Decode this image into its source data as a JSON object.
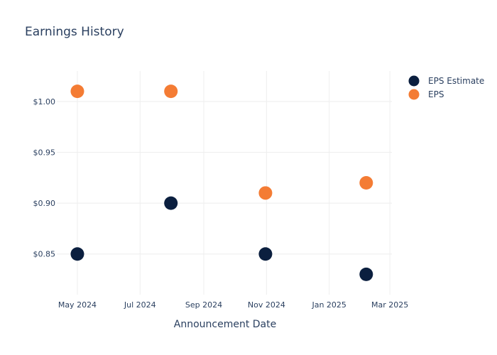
{
  "chart_data": {
    "type": "scatter",
    "title": "Earnings History",
    "xlabel": "Announcement Date",
    "ylabel": "",
    "x_ticks": [
      "2024-05-01",
      "2024-07-01",
      "2024-09-01",
      "2024-11-01",
      "2025-01-01",
      "2025-03-01"
    ],
    "x_tick_labels": [
      "May 2024",
      "Jul 2024",
      "Sep 2024",
      "Nov 2024",
      "Jan 2025",
      "Mar 2025"
    ],
    "y_ticks": [
      0.85,
      0.9,
      0.95,
      1.0
    ],
    "y_tick_labels": [
      "$0.85",
      "$0.90",
      "$0.95",
      "$1.00"
    ],
    "xlim": [
      "2024-04-11",
      "2025-03-03"
    ],
    "ylim": [
      0.81,
      1.03
    ],
    "grid": true,
    "legend_position": "top-right",
    "series": [
      {
        "name": "EPS Estimate",
        "color": "#0b1f3f",
        "points": [
          {
            "x": "2024-05-01",
            "y": 0.85
          },
          {
            "x": "2024-07-31",
            "y": 0.9
          },
          {
            "x": "2024-10-31",
            "y": 0.85
          },
          {
            "x": "2025-02-06",
            "y": 0.83
          }
        ]
      },
      {
        "name": "EPS",
        "color": "#f47c34",
        "points": [
          {
            "x": "2024-05-01",
            "y": 1.01
          },
          {
            "x": "2024-07-31",
            "y": 1.01
          },
          {
            "x": "2024-10-31",
            "y": 0.91
          },
          {
            "x": "2025-02-06",
            "y": 0.92
          }
        ]
      }
    ]
  }
}
